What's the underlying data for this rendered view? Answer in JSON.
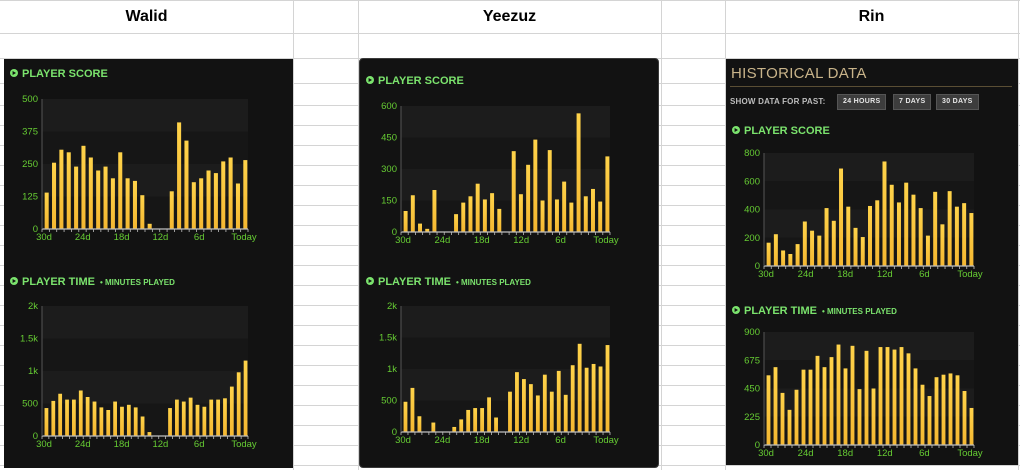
{
  "columns": [
    {
      "key": "walid",
      "name": "Walid"
    },
    {
      "key": "yeezuz",
      "name": "Yeezuz"
    },
    {
      "key": "rin",
      "name": "Rin"
    }
  ],
  "rin_header": {
    "title": "HISTORICAL DATA",
    "show_label": "SHOW DATA FOR PAST:",
    "buttons": [
      "24 HOURS",
      "7 DAYS",
      "30 DAYS"
    ]
  },
  "colors": {
    "panel_bg": "#121212",
    "bar_fill": "#f4b731",
    "accent_green": "#7be36d",
    "tick_green": "#66cc33",
    "hist_title": "#c9b48a"
  },
  "icons": {
    "section_bullet": "play-circle-icon"
  },
  "chart_data": [
    {
      "type": "bar",
      "panel": "walid",
      "section": "score",
      "title": "PLAYER SCORE",
      "subtitle": "",
      "x_labels": [
        "30d",
        "24d",
        "18d",
        "12d",
        "6d",
        "Today"
      ],
      "y_ticks": [
        "0",
        "125",
        "250",
        "375",
        "500"
      ],
      "ylim": [
        0,
        500
      ],
      "values": [
        140,
        255,
        305,
        295,
        240,
        320,
        275,
        225,
        240,
        195,
        295,
        195,
        185,
        130,
        20,
        0,
        0,
        145,
        410,
        340,
        180,
        195,
        225,
        215,
        260,
        275,
        175,
        265
      ]
    },
    {
      "type": "bar",
      "panel": "walid",
      "section": "time",
      "title": "PLAYER TIME",
      "subtitle": "• MINUTES PLAYED",
      "x_labels": [
        "30d",
        "24d",
        "18d",
        "12d",
        "6d",
        "Today"
      ],
      "y_ticks": [
        "0",
        "500",
        "1k",
        "1.5k",
        "2k"
      ],
      "ylim": [
        0,
        2000
      ],
      "values": [
        430,
        540,
        650,
        560,
        560,
        700,
        600,
        530,
        440,
        400,
        530,
        450,
        480,
        440,
        300,
        60,
        0,
        0,
        430,
        560,
        530,
        590,
        480,
        450,
        560,
        560,
        580,
        760,
        980,
        1160
      ]
    },
    {
      "type": "bar",
      "panel": "yeezuz",
      "section": "score",
      "title": "PLAYER SCORE",
      "subtitle": "",
      "x_labels": [
        "30d",
        "24d",
        "18d",
        "12d",
        "6d",
        "Today"
      ],
      "y_ticks": [
        "0",
        "150",
        "300",
        "450",
        "600"
      ],
      "ylim": [
        0,
        600
      ],
      "values": [
        100,
        175,
        40,
        15,
        200,
        0,
        0,
        85,
        140,
        170,
        230,
        155,
        185,
        110,
        0,
        385,
        180,
        320,
        440,
        150,
        390,
        155,
        240,
        140,
        565,
        170,
        205,
        145,
        360
      ]
    },
    {
      "type": "bar",
      "panel": "yeezuz",
      "section": "time",
      "title": "PLAYER TIME",
      "subtitle": "• MINUTES PLAYED",
      "x_labels": [
        "30d",
        "24d",
        "18d",
        "12d",
        "6d",
        "Today"
      ],
      "y_ticks": [
        "0",
        "500",
        "1k",
        "1.5k",
        "2k"
      ],
      "ylim": [
        0,
        2000
      ],
      "values": [
        480,
        700,
        250,
        0,
        150,
        0,
        0,
        80,
        200,
        350,
        380,
        380,
        550,
        230,
        0,
        640,
        950,
        840,
        760,
        580,
        910,
        640,
        970,
        590,
        1060,
        1400,
        1020,
        1080,
        1040,
        1380
      ]
    },
    {
      "type": "bar",
      "panel": "rin",
      "section": "score",
      "title": "PLAYER SCORE",
      "subtitle": "",
      "x_labels": [
        "30d",
        "24d",
        "18d",
        "12d",
        "6d",
        "Today"
      ],
      "y_ticks": [
        "0",
        "200",
        "400",
        "600",
        "800"
      ],
      "ylim": [
        0,
        800
      ],
      "values": [
        165,
        225,
        110,
        85,
        155,
        315,
        250,
        215,
        410,
        320,
        690,
        420,
        270,
        205,
        425,
        465,
        740,
        575,
        450,
        590,
        505,
        410,
        215,
        525,
        295,
        530,
        420,
        445,
        375
      ]
    },
    {
      "type": "bar",
      "panel": "rin",
      "section": "time",
      "title": "PLAYER TIME",
      "subtitle": "• MINUTES PLAYED",
      "x_labels": [
        "30d",
        "24d",
        "18d",
        "12d",
        "6d",
        "Today"
      ],
      "y_ticks": [
        "0",
        "225",
        "450",
        "675",
        "900"
      ],
      "ylim": [
        0,
        900
      ],
      "values": [
        555,
        620,
        415,
        280,
        440,
        600,
        600,
        710,
        620,
        700,
        800,
        610,
        790,
        445,
        750,
        450,
        780,
        780,
        760,
        780,
        730,
        610,
        480,
        390,
        540,
        560,
        570,
        555,
        430,
        295
      ]
    }
  ]
}
